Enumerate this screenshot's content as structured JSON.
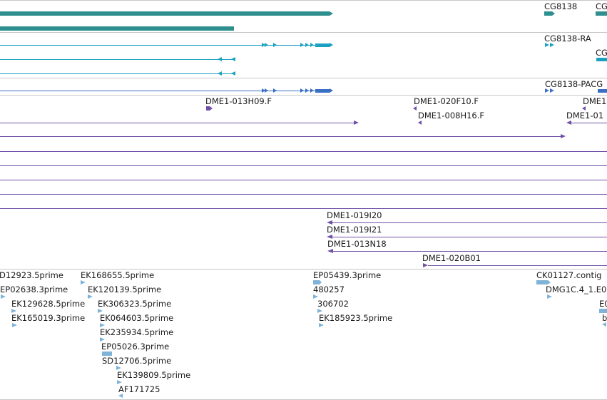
{
  "colors": {
    "gene": "#2f8f8f",
    "transcript": "#1aa1c1",
    "protein": "#3a6fc4",
    "clone": "#7050a8",
    "est": "#7fb3d8",
    "separator": "#c8c8c8"
  },
  "tracks": {
    "genes": {
      "labels": [
        "CG8138",
        "CG"
      ]
    },
    "transcripts": {
      "labels": [
        "CG8138-RA",
        "CG"
      ]
    },
    "proteins": {
      "labels": [
        "CG8138-PACG"
      ]
    },
    "clones": {
      "labels": [
        "DME1-013H09.F",
        "DME1-020F10.F",
        "DME1-008H16.F",
        "DME1",
        "DME1-01",
        "DME1-019I20",
        "DME1-019I21",
        "DME1-013N18",
        "DME1-020B01"
      ]
    },
    "ests": {
      "labels": [
        "D12923.5prime",
        "EP02638.3prime",
        "EK129628.5prime",
        "EK165019.3prime",
        "EK168655.5prime",
        "EK120139.5prime",
        "EK306323.5prime",
        "EK064603.5prime",
        "EK235934.5prime",
        "EP05026.3prime",
        "SD12706.5prime",
        "EK139809.5prime",
        "AF171725",
        "EP05439.3prime",
        "480257",
        "306702",
        "EK185923.5prime",
        "CK01127.contig",
        "DMG1C.4_1.E0",
        "E0",
        "b"
      ]
    }
  }
}
